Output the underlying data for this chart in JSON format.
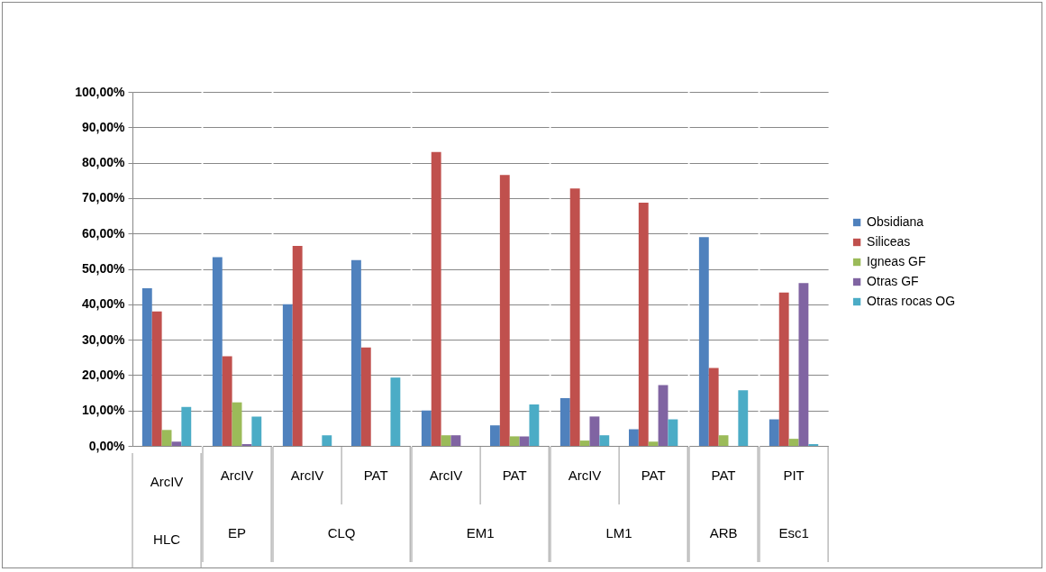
{
  "chart_data": [
    {
      "type": "bar",
      "xlabel": "HLC",
      "categories": [
        "ArcIV"
      ],
      "series": [
        {
          "color": "#4f81bd",
          "values": [
            44.5
          ]
        },
        {
          "color": "#c0504d",
          "values": [
            38
          ]
        },
        {
          "color": "#9bbb59",
          "values": [
            4.5
          ]
        },
        {
          "color": "#8064a2",
          "values": [
            1.2
          ]
        },
        {
          "color": "#4bacc6",
          "values": [
            11
          ]
        }
      ],
      "ylim": [
        0,
        100
      ],
      "yticks": [
        {
          "value": 0,
          "label": "0,00%"
        },
        {
          "value": 10,
          "label": "10,00%"
        },
        {
          "value": 20,
          "label": "20,00%"
        },
        {
          "value": 30,
          "label": "30,00%"
        },
        {
          "value": 40,
          "label": "40,00%"
        },
        {
          "value": 50,
          "label": "50,00%"
        },
        {
          "value": 60,
          "label": "60,00%"
        },
        {
          "value": 70,
          "label": "70,00%"
        },
        {
          "value": 80,
          "label": "80,00%"
        },
        {
          "value": 90,
          "label": "90,00%"
        },
        {
          "value": 100,
          "label": "100,00%"
        }
      ],
      "grid": "y"
    },
    {
      "type": "bar",
      "xlabel": "EP",
      "categories": [
        "ArcIV"
      ],
      "series": [
        {
          "color": "#4f81bd",
          "values": [
            53.3
          ]
        },
        {
          "color": "#c0504d",
          "values": [
            25.3
          ]
        },
        {
          "color": "#9bbb59",
          "values": [
            12.3
          ]
        },
        {
          "color": "#8064a2",
          "values": [
            0.5
          ]
        },
        {
          "color": "#4bacc6",
          "values": [
            8.3
          ]
        }
      ],
      "ylim": [
        0,
        100
      ],
      "grid": "y",
      "tick_labels": "x"
    },
    {
      "type": "bar",
      "xlabel": "CLQ",
      "categories": [
        "ArcIV",
        "PAT"
      ],
      "series": [
        {
          "color": "#4f81bd",
          "values": [
            40,
            52.5
          ]
        },
        {
          "color": "#c0504d",
          "values": [
            56.5,
            27.8
          ]
        },
        {
          "color": "#9bbb59",
          "values": [
            0,
            0
          ]
        },
        {
          "color": "#8064a2",
          "values": [
            0,
            0
          ]
        },
        {
          "color": "#4bacc6",
          "values": [
            3,
            19.3
          ]
        }
      ],
      "ylim": [
        0,
        100
      ],
      "grid": "y",
      "tick_labels": "x"
    },
    {
      "type": "bar",
      "xlabel": "EM1",
      "categories": [
        "ArcIV",
        "PAT"
      ],
      "series": [
        {
          "color": "#4f81bd",
          "values": [
            10,
            5.8
          ]
        },
        {
          "color": "#c0504d",
          "values": [
            83,
            76.5
          ]
        },
        {
          "color": "#9bbb59",
          "values": [
            3,
            2.7
          ]
        },
        {
          "color": "#8064a2",
          "values": [
            3,
            2.7
          ]
        },
        {
          "color": "#4bacc6",
          "values": [
            0,
            11.7
          ]
        }
      ],
      "ylim": [
        0,
        100
      ],
      "grid": "y",
      "tick_labels": "x"
    },
    {
      "type": "bar",
      "xlabel": "LM1",
      "categories": [
        "ArcIV",
        "PAT"
      ],
      "series": [
        {
          "color": "#4f81bd",
          "values": [
            13.5,
            4.7
          ]
        },
        {
          "color": "#c0504d",
          "values": [
            72.7,
            68.7
          ]
        },
        {
          "color": "#9bbb59",
          "values": [
            1.5,
            1.2
          ]
        },
        {
          "color": "#8064a2",
          "values": [
            8.3,
            17.2
          ]
        },
        {
          "color": "#4bacc6",
          "values": [
            3,
            7.5
          ]
        }
      ],
      "ylim": [
        0,
        100
      ],
      "grid": "y",
      "tick_labels": "x"
    },
    {
      "type": "bar",
      "xlabel": "ARB",
      "categories": [
        "PAT"
      ],
      "series": [
        {
          "color": "#4f81bd",
          "values": [
            59
          ]
        },
        {
          "color": "#c0504d",
          "values": [
            22
          ]
        },
        {
          "color": "#9bbb59",
          "values": [
            3
          ]
        },
        {
          "color": "#8064a2",
          "values": [
            0
          ]
        },
        {
          "color": "#4bacc6",
          "values": [
            15.7
          ]
        }
      ],
      "ylim": [
        0,
        100
      ],
      "grid": "y",
      "tick_labels": "x"
    },
    {
      "type": "bar",
      "xlabel": "Esc1",
      "categories": [
        "PIT"
      ],
      "series": [
        {
          "name": "Obsidiana",
          "color": "#4f81bd",
          "values": [
            7.5
          ]
        },
        {
          "name": "Siliceas",
          "color": "#c0504d",
          "values": [
            43.3
          ]
        },
        {
          "name": "Igneas GF",
          "color": "#9bbb59",
          "values": [
            2
          ]
        },
        {
          "name": "Otras GF",
          "color": "#8064a2",
          "values": [
            46
          ]
        },
        {
          "name": "Otras rocas OG",
          "color": "#4bacc6",
          "values": [
            0.5
          ]
        }
      ],
      "ylim": [
        0,
        100
      ],
      "grid": "y",
      "tick_labels": "x",
      "legend": "right"
    }
  ]
}
